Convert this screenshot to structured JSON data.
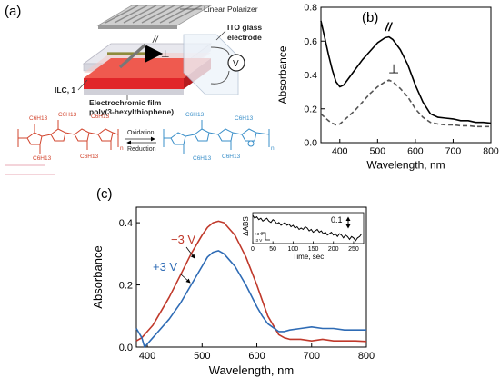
{
  "panel_a": {
    "label": "(a)",
    "polarizer_label": "Linear Polarizer",
    "ito_label": "ITO glass electrode",
    "ito_label_line1": "ITO glass",
    "ito_label_line2": "electrode",
    "voltage_symbol": "V",
    "parallel_symbol": "//",
    "perp_symbol": "⊥",
    "ilc_label": "ILC, 1",
    "film_label_line1": "Electrochromic film",
    "film_label_line2": "poly(3-hexylthiophene)",
    "oxidation_label": "Oxidation",
    "reduction_label": "Reduction",
    "substituent": "C6H13",
    "repeat_n": "n",
    "colors": {
      "reduced": "#d2452e",
      "oxidized": "#3a8fc9",
      "film": "#e1262a"
    }
  },
  "chart_data": [
    {
      "panel": "(b)",
      "type": "line",
      "xlabel": "Wavelength, nm",
      "ylabel": "Absorbance",
      "xlim": [
        350,
        800
      ],
      "ylim": [
        0.0,
        0.8
      ],
      "xticks": [
        400,
        500,
        600,
        700,
        800
      ],
      "yticks": [
        0.0,
        0.2,
        0.4,
        0.6,
        0.8
      ],
      "grid": false,
      "series": [
        {
          "name": "//",
          "style": "solid",
          "color": "#000000",
          "x": [
            350,
            360,
            370,
            380,
            390,
            400,
            410,
            420,
            440,
            460,
            480,
            500,
            520,
            530,
            540,
            560,
            580,
            600,
            620,
            640,
            660,
            680,
            700,
            720,
            740,
            760,
            780,
            800
          ],
          "y": [
            0.72,
            0.62,
            0.52,
            0.43,
            0.36,
            0.33,
            0.34,
            0.37,
            0.43,
            0.49,
            0.54,
            0.59,
            0.62,
            0.625,
            0.61,
            0.55,
            0.46,
            0.34,
            0.24,
            0.17,
            0.15,
            0.145,
            0.14,
            0.13,
            0.13,
            0.12,
            0.12,
            0.115
          ]
        },
        {
          "name": "⊥",
          "style": "dashed",
          "color": "#555555",
          "x": [
            350,
            360,
            370,
            380,
            390,
            400,
            420,
            440,
            460,
            480,
            500,
            520,
            530,
            540,
            560,
            580,
            600,
            620,
            640,
            660,
            680,
            700,
            720,
            740,
            760,
            780,
            800
          ],
          "y": [
            0.17,
            0.15,
            0.13,
            0.115,
            0.105,
            0.11,
            0.15,
            0.19,
            0.24,
            0.29,
            0.33,
            0.36,
            0.37,
            0.36,
            0.32,
            0.27,
            0.2,
            0.15,
            0.12,
            0.11,
            0.105,
            0.105,
            0.1,
            0.1,
            0.095,
            0.095,
            0.095
          ]
        }
      ],
      "annotations": [
        "//",
        "⊥"
      ]
    },
    {
      "panel": "(c)",
      "type": "line",
      "xlabel": "Wavelength, nm",
      "ylabel": "Absorbance",
      "xlim": [
        380,
        800
      ],
      "ylim": [
        0.0,
        0.45
      ],
      "xticks": [
        400,
        500,
        600,
        700,
        800
      ],
      "yticks": [
        0.0,
        0.2,
        0.4
      ],
      "grid": false,
      "series": [
        {
          "name": "−3 V",
          "color": "#c0392b",
          "x": [
            380,
            390,
            400,
            410,
            420,
            440,
            460,
            480,
            500,
            510,
            520,
            530,
            540,
            560,
            580,
            600,
            610,
            620,
            640,
            650,
            660,
            680,
            700,
            720,
            740,
            760,
            780,
            800
          ],
          "y": [
            0.02,
            0.03,
            0.05,
            0.07,
            0.1,
            0.16,
            0.23,
            0.3,
            0.36,
            0.385,
            0.4,
            0.405,
            0.4,
            0.36,
            0.29,
            0.2,
            0.15,
            0.1,
            0.04,
            0.03,
            0.025,
            0.025,
            0.02,
            0.025,
            0.02,
            0.02,
            0.02,
            0.018
          ]
        },
        {
          "name": "+3 V",
          "color": "#2e6bb5",
          "x": [
            380,
            390,
            395,
            400,
            410,
            420,
            440,
            460,
            480,
            500,
            510,
            520,
            530,
            540,
            560,
            580,
            600,
            610,
            620,
            640,
            650,
            660,
            680,
            700,
            720,
            740,
            760,
            780,
            800
          ],
          "y": [
            0.06,
            0.03,
            0.0,
            0.01,
            0.03,
            0.05,
            0.09,
            0.14,
            0.2,
            0.26,
            0.29,
            0.305,
            0.31,
            0.3,
            0.26,
            0.2,
            0.13,
            0.1,
            0.075,
            0.05,
            0.05,
            0.055,
            0.06,
            0.065,
            0.06,
            0.06,
            0.055,
            0.055,
            0.055
          ]
        }
      ],
      "annotations": [
        "−3 V",
        "+3 V"
      ],
      "inset": {
        "type": "line",
        "xlabel": "Time, sec",
        "ylabel": "ΔABS",
        "xlim": [
          0,
          275
        ],
        "xticks": [
          0,
          50,
          100,
          150,
          200,
          250
        ],
        "scale_bar_label": "0.1",
        "step_labels": [
          "+3 V",
          "-3 V"
        ],
        "series": [
          {
            "name": "",
            "color": "#000000",
            "x": [
              0,
              5,
              10,
              15,
              20,
              25,
              30,
              35,
              40,
              45,
              50,
              55,
              60,
              65,
              70,
              75,
              80,
              85,
              90,
              95,
              100,
              105,
              110,
              115,
              120,
              125,
              130,
              135,
              140,
              145,
              150,
              155,
              160,
              165,
              170,
              175,
              180,
              185,
              190,
              195,
              200,
              205,
              210,
              215,
              220,
              225,
              230,
              235,
              240,
              245,
              250,
              255,
              260,
              265,
              270
            ],
            "y": [
              0.18,
              0.16,
              0.17,
              0.15,
              0.16,
              0.14,
              0.15,
              0.16,
              0.14,
              0.13,
              0.15,
              0.14,
              0.12,
              0.13,
              0.11,
              0.12,
              0.13,
              0.11,
              0.12,
              0.1,
              0.11,
              0.09,
              0.1,
              0.08,
              0.09,
              0.08,
              0.1,
              0.09,
              0.07,
              0.08,
              0.06,
              0.07,
              0.08,
              0.06,
              0.07,
              0.05,
              0.06,
              0.04,
              0.05,
              0.06,
              0.04,
              0.05,
              0.03,
              0.05,
              0.04,
              0.02,
              0.04,
              0.03,
              0.01,
              0.03,
              0.02,
              0.0,
              0.02,
              0.03,
              0.05
            ]
          }
        ]
      }
    }
  ]
}
